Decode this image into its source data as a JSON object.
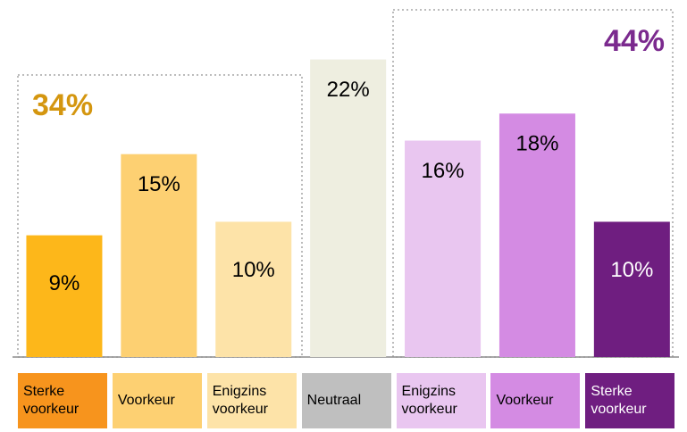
{
  "chart_data": {
    "type": "bar",
    "categories": [
      "Sterke voorkeur",
      "Voorkeur",
      "Enigzins voorkeur",
      "Neutraal",
      "Enigzins voorkeur",
      "Voorkeur",
      "Sterke voorkeur"
    ],
    "values": [
      9,
      15,
      10,
      22,
      16,
      18,
      10
    ],
    "value_labels": [
      "9%",
      "15%",
      "10%",
      "22%",
      "16%",
      "18%",
      "10%"
    ],
    "colors": [
      "#fdb71a",
      "#fdd072",
      "#fde3a8",
      "#eeeee0",
      "#e9c6f0",
      "#d48be3",
      "#6f1e80"
    ],
    "legend_colors": [
      "#f7941d",
      "#fdd072",
      "#fde3a8",
      "#bfbfbf",
      "#e9c6f0",
      "#d48be3",
      "#6f1e80"
    ],
    "ylim": [
      0,
      26
    ],
    "annotations": [
      {
        "text": "34%",
        "color": "#d4960f"
      },
      {
        "text": "44%",
        "color": "#7b2a8e"
      }
    ]
  }
}
